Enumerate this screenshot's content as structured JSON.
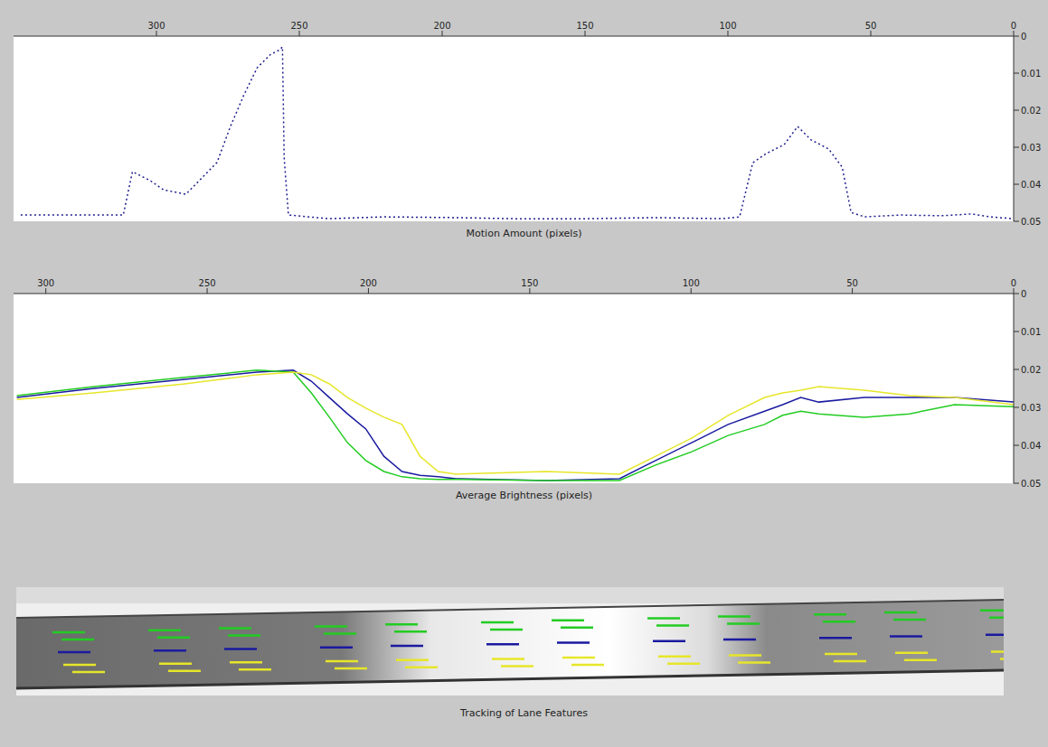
{
  "chart_data": [
    {
      "type": "line",
      "xlabel": "Motion Amount (pixels)",
      "xlim": [
        350,
        0
      ],
      "xticks": [
        300,
        250,
        200,
        150,
        100,
        50,
        0
      ],
      "ylim": [
        0.05,
        0
      ],
      "yticks": [
        0,
        0.01,
        0.02,
        0.03,
        0.04,
        0.05
      ],
      "grid": false,
      "x": [
        347.5,
        311.6,
        308.4,
        305.3,
        302.2,
        297.5,
        289.7,
        285.0,
        278.8,
        274.1,
        269.4,
        264.7,
        260.0,
        256.9,
        255.9,
        255.3,
        253.8,
        239.7,
        220.0,
        196.0,
        175.0,
        149.0,
        125.0,
        102.2,
        95.9,
        91.3,
        86.6,
        80.3,
        75.6,
        70.9,
        64.7,
        60.0,
        56.9,
        52.2,
        39.7,
        25.0,
        14.7,
        8.4,
        0
      ],
      "series": [
        {
          "color": "#1f1f8f",
          "line_style": "dotted",
          "values": [
            0.0483,
            0.0483,
            0.0366,
            0.0378,
            0.039,
            0.0415,
            0.0427,
            0.039,
            0.0341,
            0.0244,
            0.0159,
            0.0085,
            0.0049,
            0.0037,
            0.0029,
            0.0329,
            0.0483,
            0.0493,
            0.0488,
            0.049,
            0.0493,
            0.0493,
            0.049,
            0.0493,
            0.0488,
            0.0342,
            0.0317,
            0.0293,
            0.0244,
            0.028,
            0.0305,
            0.0354,
            0.0476,
            0.0488,
            0.0483,
            0.0485,
            0.048,
            0.0488,
            0.0493
          ]
        }
      ]
    },
    {
      "type": "line",
      "xlabel": "Average Brightness (pixels)",
      "xlim": [
        310,
        0
      ],
      "xticks": [
        300,
        250,
        200,
        150,
        100,
        50,
        0
      ],
      "ylim": [
        0.05,
        0
      ],
      "yticks": [
        0,
        0.01,
        0.02,
        0.03,
        0.04,
        0.05
      ],
      "grid": false,
      "x": [
        309.0,
        285.1,
        257.0,
        234.6,
        223.3,
        217.7,
        212.1,
        206.5,
        200.8,
        195.2,
        189.6,
        184.0,
        178.4,
        172.8,
        144.7,
        122.2,
        111.0,
        99.8,
        88.5,
        77.2,
        71.6,
        66.0,
        60.4,
        46.3,
        32.3,
        18.3,
        0
      ],
      "series": [
        {
          "color": "#1a1aa0",
          "line_style": "solid",
          "values": [
            0.0274,
            0.025,
            0.0226,
            0.0207,
            0.0202,
            0.0231,
            0.0274,
            0.0317,
            0.0357,
            0.0429,
            0.0469,
            0.0479,
            0.0483,
            0.0488,
            0.0493,
            0.0488,
            0.044,
            0.0393,
            0.0345,
            0.031,
            0.0293,
            0.0274,
            0.0286,
            0.0274,
            0.0274,
            0.0274,
            0.0286
          ]
        },
        {
          "color": "#22cc22",
          "line_style": "solid",
          "values": [
            0.0269,
            0.0245,
            0.0221,
            0.0202,
            0.0207,
            0.0262,
            0.0326,
            0.0393,
            0.044,
            0.0469,
            0.0483,
            0.0488,
            0.049,
            0.049,
            0.0493,
            0.0493,
            0.0452,
            0.0417,
            0.0374,
            0.0345,
            0.0321,
            0.031,
            0.0317,
            0.0326,
            0.0317,
            0.0293,
            0.0298
          ]
        },
        {
          "color": "#e6e62a",
          "line_style": "solid",
          "values": [
            0.0279,
            0.0262,
            0.0238,
            0.0214,
            0.0207,
            0.0214,
            0.0238,
            0.0274,
            0.0302,
            0.0326,
            0.0345,
            0.0429,
            0.0469,
            0.0476,
            0.0469,
            0.0476,
            0.0429,
            0.0381,
            0.0321,
            0.0274,
            0.0262,
            0.0255,
            0.0245,
            0.0255,
            0.0269,
            0.0274,
            0.0293
          ]
        }
      ]
    }
  ],
  "image": {
    "caption": "Tracking of Lane Features"
  }
}
